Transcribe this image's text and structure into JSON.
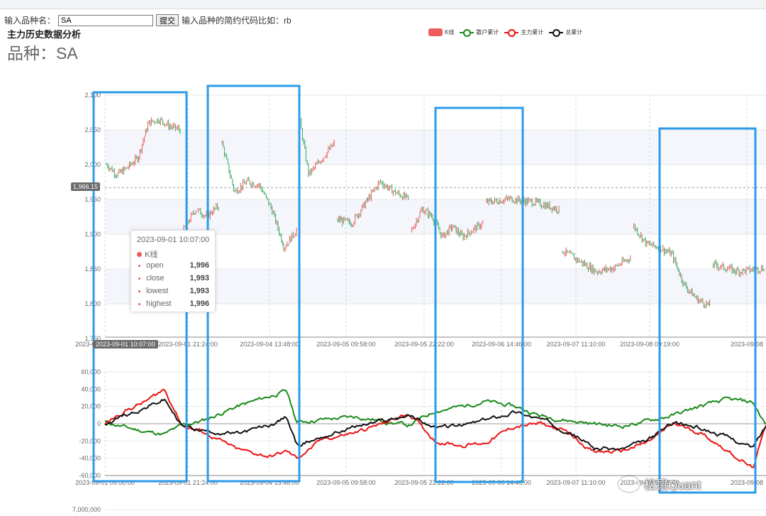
{
  "form": {
    "label": "输入品种名：",
    "input_value": "SA",
    "submit_label": "提交",
    "hint": "输入品种的简约代码比如：rb"
  },
  "page_title": "主力历史数据分析",
  "page_subtitle": "品种：SA",
  "legend": [
    {
      "name": "K线",
      "color": "#ec5c5c"
    },
    {
      "name": "散户累计",
      "color": "#1a8a1a"
    },
    {
      "name": "主力累计",
      "color": "#ee1111"
    },
    {
      "name": "总累计",
      "color": "#111111"
    }
  ],
  "tooltip": {
    "time": "2023-09-01 10:07:00",
    "series": "K线",
    "rows": [
      {
        "name": "open",
        "value": "1,996"
      },
      {
        "name": "close",
        "value": "1,993"
      },
      {
        "name": "lowest",
        "value": "1,993"
      },
      {
        "name": "highest",
        "value": "1,996"
      }
    ]
  },
  "axis_pointer": {
    "y_label": "1,966.15",
    "x_label": "2023-09-01 10:07:00"
  },
  "watermark": "松鼠Quant",
  "chart_data": [
    {
      "type": "candlestick",
      "ylim": [
        1750,
        2100
      ],
      "yticks": [
        "2,100",
        "2,050",
        "2,000",
        "1,950",
        "1,900",
        "1,850",
        "1,800",
        "1,750"
      ],
      "xticks": [
        "2023-09-01 09:00:00",
        "2023-09-01 21:24:00",
        "2023-09-04 13:48:00",
        "2023-09-05 09:58:00",
        "2023-09-05 22:22:00",
        "2023-09-06 14:46:00",
        "2023-09-07 11:10:00",
        "2023-09-08 09:19:00",
        "2023-09-08"
      ],
      "up_color": "#ec5c5c",
      "down_color": "#3aa862",
      "segments": [
        {
          "start": 0,
          "end": 0.117,
          "values": [
            2000,
            1985,
            1995,
            2010,
            2060,
            2065,
            2055,
            2050
          ]
        },
        {
          "start": 0.117,
          "end": 0.175,
          "values": [
            1905,
            1935,
            1925,
            1940
          ]
        },
        {
          "start": 0.175,
          "end": 0.293,
          "values": [
            2030,
            1960,
            1975,
            1970,
            1935,
            1880,
            1905
          ]
        },
        {
          "start": 0.293,
          "end": 0.35,
          "values": [
            2060,
            1985,
            2000,
            2015,
            2030
          ]
        },
        {
          "start": 0.35,
          "end": 0.462,
          "values": [
            1920,
            1915,
            1945,
            1975,
            1960,
            1950
          ]
        },
        {
          "start": 0.462,
          "end": 0.575,
          "values": [
            1905,
            1935,
            1925,
            1895,
            1910,
            1895,
            1905,
            1915
          ]
        },
        {
          "start": 0.575,
          "end": 0.69,
          "values": [
            1945,
            1950,
            1945,
            1935
          ]
        },
        {
          "start": 0.69,
          "end": 0.798,
          "values": [
            1875,
            1860,
            1845,
            1850,
            1865
          ]
        },
        {
          "start": 0.798,
          "end": 0.918,
          "values": [
            1910,
            1885,
            1880,
            1870,
            1825,
            1805,
            1795
          ]
        },
        {
          "start": 0.918,
          "end": 1.0,
          "values": [
            1855,
            1845,
            1850
          ]
        }
      ]
    },
    {
      "type": "line",
      "ylim": [
        -60000,
        60000
      ],
      "yticks": [
        "60,000",
        "40,000",
        "20,000",
        "0",
        "-20,000",
        "-40,000",
        "-60,000"
      ],
      "xticks": [
        "2023-09-01 09:00:00",
        "2023-09-01 21:24:00",
        "2023-09-04 13:48:00",
        "2023-09-05 09:58:00",
        "2023-09-05 22:22:00",
        "2023-09-06 14:46:00",
        "2023-09-07 11:10:00",
        "2023-09-08 09:19:00",
        "2023-09-08"
      ],
      "series": [
        {
          "name": "散户累计",
          "color": "#1a8a1a",
          "x": [
            0,
            0.03,
            0.06,
            0.09,
            0.117,
            0.15,
            0.2,
            0.25,
            0.275,
            0.29,
            0.33,
            0.38,
            0.42,
            0.46,
            0.5,
            0.54,
            0.575,
            0.62,
            0.66,
            0.7,
            0.74,
            0.78,
            0.82,
            0.86,
            0.9,
            0.94,
            0.98,
            1.0
          ],
          "values": [
            2000,
            -4000,
            -9000,
            -12000,
            -2000,
            4000,
            20000,
            32000,
            38000,
            2000,
            5000,
            8000,
            3000,
            -2000,
            15000,
            20000,
            26000,
            20000,
            9000,
            4000,
            0,
            -3000,
            3000,
            10000,
            20000,
            28000,
            25000,
            -2000
          ]
        },
        {
          "name": "主力累计",
          "color": "#ee1111",
          "x": [
            0,
            0.03,
            0.06,
            0.09,
            0.117,
            0.15,
            0.2,
            0.25,
            0.275,
            0.29,
            0.33,
            0.38,
            0.42,
            0.46,
            0.5,
            0.54,
            0.575,
            0.62,
            0.66,
            0.7,
            0.74,
            0.78,
            0.82,
            0.86,
            0.9,
            0.94,
            0.98,
            1.0
          ],
          "values": [
            0,
            15000,
            25000,
            40000,
            -2000,
            -10000,
            -30000,
            -38000,
            -32000,
            -40000,
            -18000,
            -10000,
            0,
            12000,
            -20000,
            -25000,
            -22000,
            -3000,
            0,
            -10000,
            -33000,
            -32000,
            -22000,
            0,
            -10000,
            -30000,
            -52000,
            -2000
          ]
        },
        {
          "name": "总累计",
          "color": "#111111",
          "x": [
            0,
            0.03,
            0.06,
            0.09,
            0.117,
            0.15,
            0.2,
            0.25,
            0.275,
            0.29,
            0.33,
            0.38,
            0.42,
            0.46,
            0.5,
            0.54,
            0.575,
            0.62,
            0.66,
            0.7,
            0.74,
            0.78,
            0.82,
            0.86,
            0.9,
            0.94,
            0.98,
            1.0
          ],
          "values": [
            0,
            10000,
            18000,
            28000,
            -3000,
            -8000,
            -12000,
            -2000,
            8000,
            -25000,
            -15000,
            -3000,
            3000,
            10000,
            -5000,
            -2000,
            4000,
            14000,
            5000,
            -8000,
            -28000,
            -30000,
            -20000,
            2000,
            -5000,
            -15000,
            -28000,
            -3000
          ]
        }
      ]
    }
  ]
}
